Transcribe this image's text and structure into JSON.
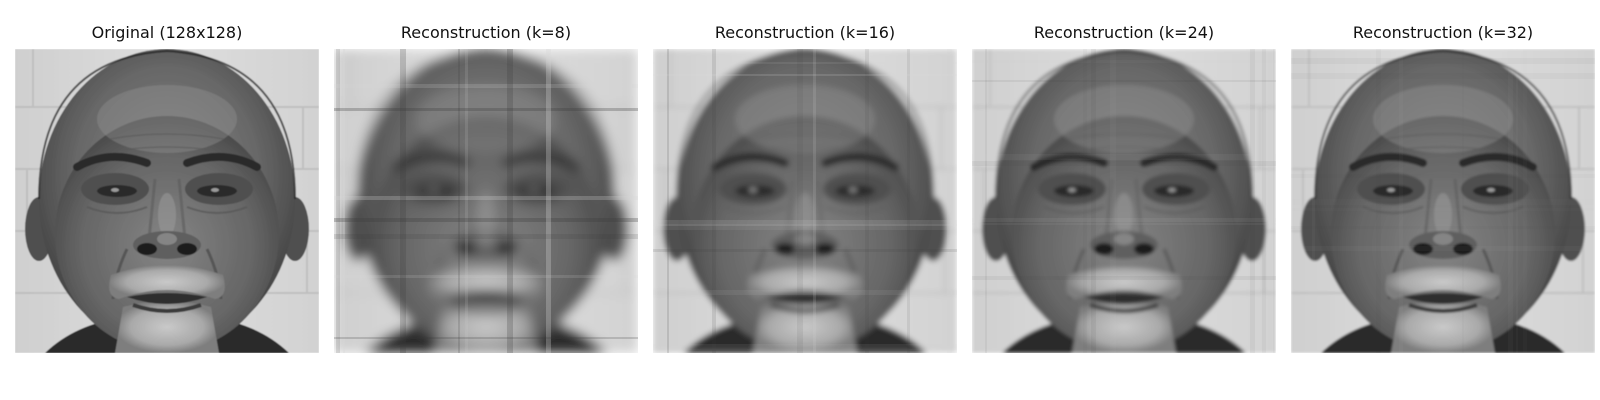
{
  "figure": {
    "panels": [
      {
        "title": "Original (128x128)",
        "blur": 0,
        "streaks": 0
      },
      {
        "title": "Reconstruction (k=8)",
        "blur": 5.5,
        "streaks": 0.55
      },
      {
        "title": "Reconstruction (k=16)",
        "blur": 3.0,
        "streaks": 0.28
      },
      {
        "title": "Reconstruction (k=24)",
        "blur": 1.8,
        "streaks": 0.14
      },
      {
        "title": "Reconstruction (k=32)",
        "blur": 1.1,
        "streaks": 0.07
      }
    ]
  }
}
